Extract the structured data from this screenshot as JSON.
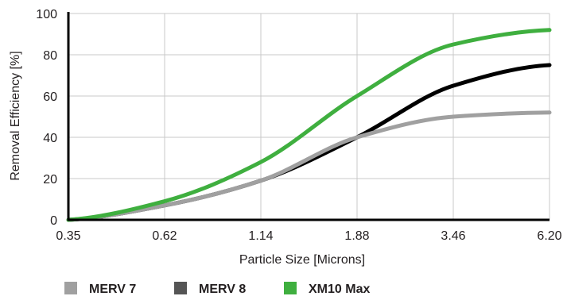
{
  "chart_data": {
    "type": "line",
    "xlabel": "Particle Size [Microns]",
    "ylabel": "Removal Efficiency [%]",
    "ylim": [
      0,
      100
    ],
    "x_scale": "categorical",
    "categories": [
      "0.35",
      "0.62",
      "1.14",
      "1.88",
      "3.46",
      "6.20"
    ],
    "y_ticks": [
      "0",
      "20",
      "40",
      "60",
      "80",
      "100"
    ],
    "grid": true,
    "legend_position": "bottom",
    "series": [
      {
        "name": "MERV 7",
        "color": "#a0a0a0",
        "values": [
          0,
          7,
          19,
          40,
          50,
          52
        ]
      },
      {
        "name": "MERV 8",
        "color": "#000000",
        "legend_color": "#555555",
        "values": [
          0,
          7,
          19,
          40,
          65,
          75
        ]
      },
      {
        "name": "XM10 Max",
        "color": "#3faf3f",
        "values": [
          0,
          9,
          28,
          60,
          85,
          92
        ]
      }
    ]
  }
}
